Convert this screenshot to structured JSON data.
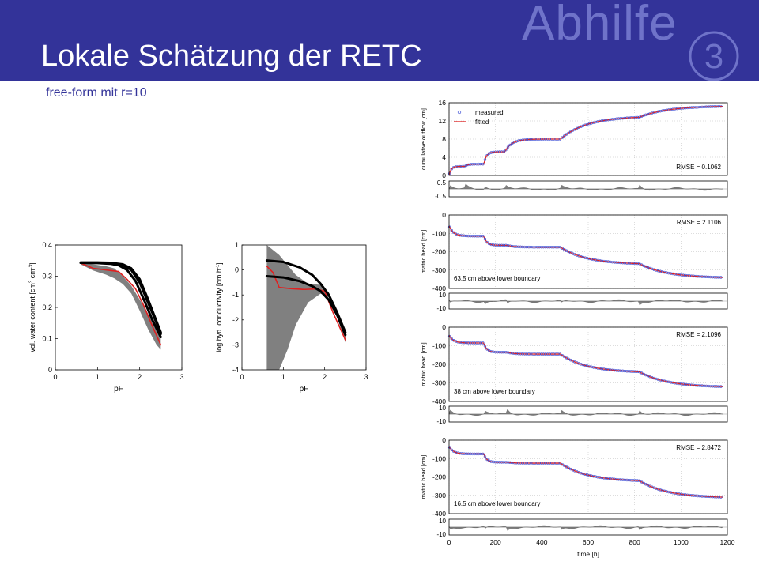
{
  "slide": {
    "title": "Lokale Schätzung der RETC",
    "subtitle": "free-form mit r=10",
    "deco_word": "Abhilfe",
    "deco_number": "3",
    "colors": {
      "header": "#333399",
      "deco": "#6f73c9",
      "fitted": "#e02020",
      "measured": "#3d4fd6",
      "band": "#808080"
    }
  },
  "chart_data": [
    {
      "type": "line",
      "xlabel": "pF",
      "ylabel": "vol. water content [cm3 cm-3]",
      "ylabel_main": "vol. water content [cm",
      "ylabel_sup1": "3",
      "ylabel_mid": " cm",
      "ylabel_sup2": "-3",
      "ylabel_end": "]",
      "xlim": [
        0,
        3
      ],
      "ylim": [
        0,
        0.4
      ],
      "xticks": [
        0,
        1,
        2,
        3
      ],
      "yticks": [
        0,
        0.1,
        0.2,
        0.3,
        0.4
      ],
      "xtick_labels": [
        "0",
        "1",
        "2",
        "3"
      ],
      "ytick_labels": [
        "0",
        "0.1",
        "0.2",
        "0.3",
        "0.4"
      ],
      "band": {
        "x": [
          0.6,
          0.9,
          1.2,
          1.4,
          1.6,
          1.8,
          2.0,
          2.2,
          2.4,
          2.5
        ],
        "upper": [
          0.345,
          0.338,
          0.332,
          0.325,
          0.3,
          0.27,
          0.225,
          0.18,
          0.125,
          0.1
        ],
        "lower": [
          0.338,
          0.318,
          0.305,
          0.293,
          0.275,
          0.245,
          0.19,
          0.13,
          0.08,
          0.065
        ]
      },
      "series": [
        {
          "x": [
            0.6,
            0.9,
            1.2,
            1.5,
            1.7,
            1.9,
            2.1,
            2.3,
            2.5
          ],
          "y": [
            0.342,
            0.325,
            0.32,
            0.315,
            0.29,
            0.26,
            0.205,
            0.14,
            0.08
          ],
          "color": "#e02020",
          "width": 1.6
        },
        {
          "x": [
            0.6,
            1.0,
            1.3,
            1.5,
            1.7,
            1.9,
            2.1,
            2.3,
            2.5
          ],
          "y": [
            0.343,
            0.342,
            0.34,
            0.335,
            0.32,
            0.285,
            0.225,
            0.16,
            0.105
          ],
          "color": "#000000",
          "width": 3
        },
        {
          "x": [
            0.6,
            1.0,
            1.3,
            1.6,
            1.8,
            2.0,
            2.2,
            2.4,
            2.5
          ],
          "y": [
            0.344,
            0.344,
            0.343,
            0.338,
            0.325,
            0.29,
            0.225,
            0.155,
            0.12
          ],
          "color": "#000000",
          "width": 3
        },
        {
          "x": [
            0.6,
            1.0,
            1.3,
            1.6,
            1.8,
            2.0,
            2.2,
            2.4,
            2.5
          ],
          "y": [
            0.343,
            0.343,
            0.342,
            0.336,
            0.32,
            0.28,
            0.215,
            0.15,
            0.115
          ],
          "color": "#000000",
          "width": 3
        }
      ]
    },
    {
      "type": "line",
      "xlabel": "pF",
      "ylabel": "log hyd. conductivity [cm h-1]",
      "ylabel_main": "log hyd. conductivity [cm h",
      "ylabel_sup1": "-1",
      "ylabel_end": "]",
      "xlim": [
        0,
        3
      ],
      "ylim": [
        -4,
        1
      ],
      "xticks": [
        0,
        1,
        2,
        3
      ],
      "yticks": [
        -4,
        -3,
        -2,
        -1,
        0,
        1
      ],
      "xtick_labels": [
        "0",
        "1",
        "2",
        "3"
      ],
      "ytick_labels": [
        "-4",
        "-3",
        "-2",
        "-1",
        "0",
        "1"
      ],
      "band": {
        "x": [
          0.6,
          0.9,
          1.1,
          1.3,
          1.6,
          1.9,
          2.1,
          2.3,
          2.5
        ],
        "upper": [
          1.0,
          0.6,
          0.2,
          -0.2,
          -0.55,
          -0.6,
          -0.9,
          -1.7,
          -2.6
        ],
        "lower": [
          -4.0,
          -4.0,
          -3.2,
          -2.2,
          -1.3,
          -0.95,
          -1.1,
          -1.9,
          -2.9
        ]
      },
      "series": [
        {
          "x": [
            0.6,
            0.75,
            0.9,
            1.2,
            1.5,
            1.8,
            2.0,
            2.2,
            2.5
          ],
          "y": [
            0.15,
            -0.1,
            -0.7,
            -0.75,
            -0.78,
            -0.76,
            -0.85,
            -1.7,
            -2.8
          ],
          "color": "#e02020",
          "width": 1.6
        },
        {
          "x": [
            0.6,
            1.0,
            1.4,
            1.7,
            1.9,
            2.1,
            2.3,
            2.5
          ],
          "y": [
            0.38,
            0.32,
            0.1,
            -0.2,
            -0.55,
            -1.0,
            -1.7,
            -2.5
          ],
          "color": "#000000",
          "width": 3
        },
        {
          "x": [
            0.6,
            1.0,
            1.4,
            1.7,
            1.9,
            2.1,
            2.3,
            2.5
          ],
          "y": [
            -0.25,
            -0.3,
            -0.45,
            -0.65,
            -0.85,
            -1.2,
            -1.8,
            -2.6
          ],
          "color": "#000000",
          "width": 3
        }
      ]
    },
    {
      "type": "line",
      "ylabel": "cumulative outflow [cm]",
      "xlim": [
        0,
        1200
      ],
      "ylim": [
        0,
        16
      ],
      "yticks": [
        0,
        4,
        8,
        12,
        16
      ],
      "ytick_labels": [
        "0",
        "4",
        "8",
        "12",
        "16"
      ],
      "legend": {
        "measured": "measured",
        "fitted": "fitted",
        "placement": "top-left"
      },
      "rmse": "RMSE = 0.1062",
      "steps": [
        [
          0,
          0
        ],
        [
          70,
          2
        ],
        [
          150,
          2.5
        ],
        [
          240,
          5.2
        ],
        [
          480,
          8
        ],
        [
          820,
          12.8
        ],
        [
          1180,
          15.2
        ]
      ],
      "residual": {
        "ylim": [
          -0.5,
          0.5
        ],
        "ytick_labels": [
          "0.5",
          "-0.5"
        ]
      }
    },
    {
      "type": "line",
      "ylabel": "matric head [cm]",
      "xlim": [
        0,
        1200
      ],
      "ylim": [
        -400,
        0
      ],
      "yticks": [
        -400,
        -300,
        -200,
        -100,
        0
      ],
      "ytick_labels": [
        "-400",
        "-300",
        "-200",
        "-100",
        "0"
      ],
      "rmse": "RMSE = 2.1106",
      "annotation": "63.5 cm above lower boundary",
      "steps": [
        [
          0,
          -60
        ],
        [
          150,
          -115
        ],
        [
          250,
          -165
        ],
        [
          480,
          -175
        ],
        [
          820,
          -265
        ],
        [
          1180,
          -340
        ]
      ],
      "residual": {
        "ylim": [
          -10,
          10
        ],
        "ytick_labels": [
          "10",
          "-10"
        ]
      }
    },
    {
      "type": "line",
      "ylabel": "matric head [cm]",
      "xlim": [
        0,
        1200
      ],
      "ylim": [
        -400,
        0
      ],
      "yticks": [
        -400,
        -300,
        -200,
        -100,
        0
      ],
      "ytick_labels": [
        "-400",
        "-300",
        "-200",
        "-100",
        "0"
      ],
      "rmse": "RMSE = 2.1096",
      "annotation": "38 cm above lower boundary",
      "steps": [
        [
          0,
          -45
        ],
        [
          150,
          -85
        ],
        [
          250,
          -135
        ],
        [
          480,
          -145
        ],
        [
          820,
          -240
        ],
        [
          1180,
          -320
        ]
      ],
      "residual": {
        "ylim": [
          -10,
          10
        ],
        "ytick_labels": [
          "10",
          "-10"
        ]
      }
    },
    {
      "type": "line",
      "ylabel": "matric head [cm]",
      "xlabel": "time [h]",
      "xlim": [
        0,
        1200
      ],
      "ylim": [
        -400,
        0
      ],
      "xticks": [
        0,
        200,
        400,
        600,
        800,
        1000,
        1200
      ],
      "xtick_labels": [
        "0",
        "200",
        "400",
        "600",
        "800",
        "1000",
        "1200"
      ],
      "yticks": [
        -400,
        -300,
        -200,
        -100,
        0
      ],
      "ytick_labels": [
        "-400",
        "-300",
        "-200",
        "-100",
        "0"
      ],
      "rmse": "RMSE = 2.8472",
      "annotation": "16.5 cm above lower boundary",
      "steps": [
        [
          0,
          -35
        ],
        [
          150,
          -75
        ],
        [
          250,
          -120
        ],
        [
          480,
          -125
        ],
        [
          820,
          -220
        ],
        [
          1180,
          -310
        ]
      ],
      "residual": {
        "ylim": [
          -10,
          10
        ],
        "ytick_labels": [
          "10",
          "-10"
        ]
      }
    }
  ]
}
